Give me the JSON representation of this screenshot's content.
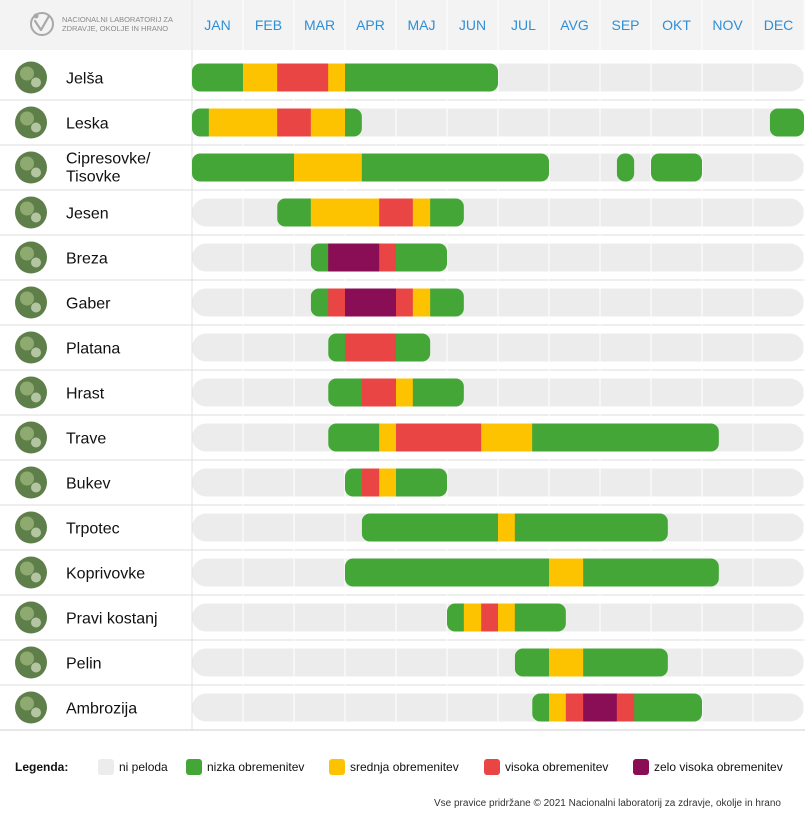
{
  "header": {
    "org_line1": "NACIONALNI LABORATORIJ ZA",
    "org_line2": "ZDRAVJE, OKOLJE IN HRANO",
    "logo_icon": "nlzoh-logo-icon"
  },
  "colors": {
    "none": "#ececec",
    "low": "#44a637",
    "medium": "#fdc300",
    "high": "#e94545",
    "very_high": "#8a0e56",
    "month": "#2f8fd6"
  },
  "chart_data": {
    "type": "timeline",
    "title": "",
    "months": [
      "JAN",
      "FEB",
      "MAR",
      "APR",
      "MAJ",
      "JUN",
      "JUL",
      "AVG",
      "SEP",
      "OKT",
      "NOV",
      "DEC"
    ],
    "unit": "month position (0 = start of January, 12 = end of December)",
    "levels": {
      "low": "nizka obremenitev",
      "medium": "srednja obremenitev",
      "high": "visoka obremenitev",
      "very_high": "zelo visoka obremenitev"
    },
    "series": [
      {
        "name": "Jelša",
        "segments": [
          [
            0,
            1,
            "low"
          ],
          [
            1,
            1.67,
            "medium"
          ],
          [
            1.67,
            2.67,
            "high"
          ],
          [
            2.67,
            3,
            "medium"
          ],
          [
            3,
            6,
            "low"
          ]
        ]
      },
      {
        "name": "Leska",
        "segments": [
          [
            0,
            0.33,
            "low"
          ],
          [
            0.33,
            1.67,
            "medium"
          ],
          [
            1.67,
            2.33,
            "high"
          ],
          [
            2.33,
            3,
            "medium"
          ],
          [
            3,
            3.33,
            "low"
          ],
          [
            11.33,
            12,
            "low"
          ]
        ]
      },
      {
        "name": "Cipresovke/ Tisovke",
        "segments": [
          [
            0,
            2,
            "low"
          ],
          [
            2,
            3.33,
            "medium"
          ],
          [
            3.33,
            7,
            "low"
          ],
          [
            8.33,
            8.67,
            "low"
          ],
          [
            9,
            10,
            "low"
          ]
        ]
      },
      {
        "name": "Jesen",
        "segments": [
          [
            1.67,
            2.33,
            "low"
          ],
          [
            2.33,
            3.67,
            "medium"
          ],
          [
            3.67,
            4.33,
            "high"
          ],
          [
            4.33,
            4.67,
            "medium"
          ],
          [
            4.67,
            5.33,
            "low"
          ]
        ]
      },
      {
        "name": "Breza",
        "segments": [
          [
            2.33,
            2.67,
            "low"
          ],
          [
            2.67,
            3.67,
            "very_high"
          ],
          [
            3.67,
            4,
            "high"
          ],
          [
            4,
            5,
            "low"
          ]
        ]
      },
      {
        "name": "Gaber",
        "segments": [
          [
            2.33,
            2.67,
            "low"
          ],
          [
            2.67,
            3,
            "high"
          ],
          [
            3,
            4,
            "very_high"
          ],
          [
            4,
            4.33,
            "high"
          ],
          [
            4.33,
            4.67,
            "medium"
          ],
          [
            4.67,
            5.33,
            "low"
          ]
        ]
      },
      {
        "name": "Platana",
        "segments": [
          [
            2.67,
            3,
            "low"
          ],
          [
            3,
            4,
            "high"
          ],
          [
            4,
            4.67,
            "low"
          ]
        ]
      },
      {
        "name": "Hrast",
        "segments": [
          [
            2.67,
            3.33,
            "low"
          ],
          [
            3.33,
            4,
            "high"
          ],
          [
            4,
            4.33,
            "medium"
          ],
          [
            4.33,
            5.33,
            "low"
          ]
        ]
      },
      {
        "name": "Trave",
        "segments": [
          [
            2.67,
            3.67,
            "low"
          ],
          [
            3.67,
            4,
            "medium"
          ],
          [
            4,
            5.67,
            "high"
          ],
          [
            5.67,
            6.67,
            "medium"
          ],
          [
            6.67,
            10.33,
            "low"
          ]
        ]
      },
      {
        "name": "Bukev",
        "segments": [
          [
            3,
            3.33,
            "low"
          ],
          [
            3.33,
            3.67,
            "high"
          ],
          [
            3.67,
            4,
            "medium"
          ],
          [
            4,
            5,
            "low"
          ]
        ]
      },
      {
        "name": "Trpotec",
        "segments": [
          [
            3.33,
            6,
            "low"
          ],
          [
            6,
            6.33,
            "medium"
          ],
          [
            6.33,
            9.33,
            "low"
          ]
        ]
      },
      {
        "name": "Koprivovke",
        "segments": [
          [
            3,
            7,
            "low"
          ],
          [
            7,
            7.67,
            "medium"
          ],
          [
            7.67,
            10.33,
            "low"
          ]
        ]
      },
      {
        "name": "Pravi kostanj",
        "segments": [
          [
            5,
            5.33,
            "low"
          ],
          [
            5.33,
            5.67,
            "medium"
          ],
          [
            5.67,
            6,
            "high"
          ],
          [
            6,
            6.33,
            "medium"
          ],
          [
            6.33,
            7.33,
            "low"
          ]
        ]
      },
      {
        "name": "Pelin",
        "segments": [
          [
            6.33,
            7,
            "low"
          ],
          [
            7,
            7.67,
            "medium"
          ],
          [
            7.67,
            9.33,
            "low"
          ]
        ]
      },
      {
        "name": "Ambrozija",
        "segments": [
          [
            6.67,
            7,
            "low"
          ],
          [
            7,
            7.33,
            "medium"
          ],
          [
            7.33,
            7.67,
            "high"
          ],
          [
            7.67,
            8.33,
            "very_high"
          ],
          [
            8.33,
            8.67,
            "high"
          ],
          [
            8.67,
            10,
            "low"
          ]
        ]
      }
    ]
  },
  "legend": {
    "title": "Legenda:",
    "items": [
      {
        "key": "none",
        "label": "ni peloda"
      },
      {
        "key": "low",
        "label": "nizka obremenitev"
      },
      {
        "key": "medium",
        "label": "srednja obremenitev"
      },
      {
        "key": "high",
        "label": "visoka obremenitev"
      },
      {
        "key": "very_high",
        "label": "zelo visoka obremenitev"
      }
    ]
  },
  "footer": {
    "copyright": "Vse pravice pridržane © 2021 Nacionalni laboratorij za zdravje, okolje in hrano"
  }
}
